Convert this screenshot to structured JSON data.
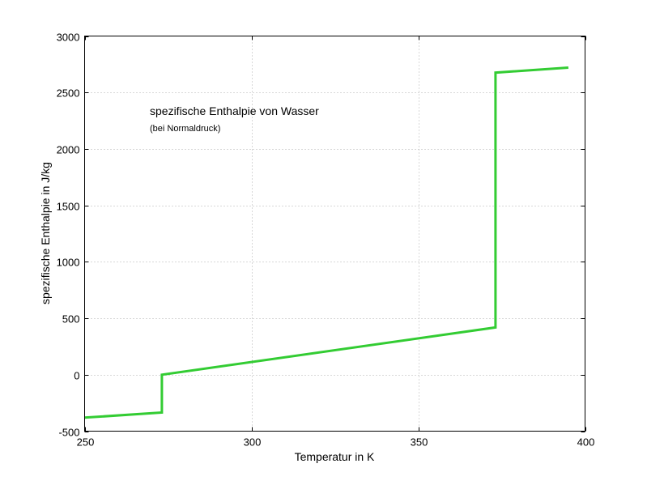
{
  "chart_data": {
    "type": "line",
    "title": "",
    "xlabel": "Temperatur in K",
    "ylabel": "spezifische Enthalpie in J/kg",
    "xlim": [
      250,
      400
    ],
    "ylim": [
      -500,
      3000
    ],
    "xticks": [
      250,
      300,
      350,
      400
    ],
    "yticks": [
      -500,
      0,
      500,
      1000,
      1500,
      2000,
      2500,
      3000
    ],
    "grid": true,
    "annotations": {
      "main": "spezifische Enthalpie von Wasser",
      "sub": "(bei Normaldruck)"
    },
    "series": [
      {
        "color": "#33cc33",
        "x": [
          250,
          273.15,
          273.15,
          373.15,
          373.15,
          395
        ],
        "y": [
          -380,
          -335,
          0,
          419,
          2676,
          2720
        ]
      }
    ]
  }
}
